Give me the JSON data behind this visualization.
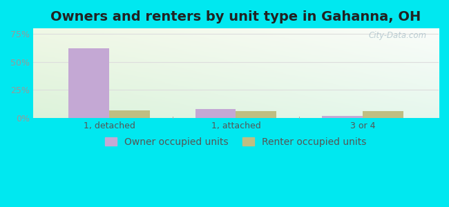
{
  "title": "Owners and renters by unit type in Gahanna, OH",
  "categories": [
    "1, detached",
    "1, attached",
    "3 or 4"
  ],
  "owner_values": [
    62,
    8,
    1.5
  ],
  "renter_values": [
    7,
    6,
    6
  ],
  "owner_color": "#c4a8d4",
  "renter_color": "#bfbe82",
  "yticks": [
    0,
    25,
    50,
    75
  ],
  "ytick_labels": [
    "0%",
    "25%",
    "50%",
    "75%"
  ],
  "ylim": [
    0,
    80
  ],
  "legend_owner": "Owner occupied units",
  "legend_renter": "Renter occupied units",
  "watermark": "City-Data.com",
  "bar_width": 0.32,
  "outer_bg": "#00e8f0",
  "title_fontsize": 14,
  "tick_fontsize": 9,
  "legend_fontsize": 10,
  "grid_color": "#dddddd",
  "ytick_color": "#999999",
  "xtick_color": "#555555"
}
